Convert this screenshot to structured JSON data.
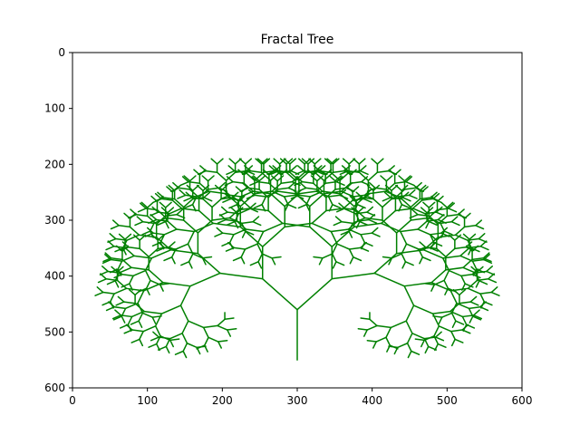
{
  "chart_data": {
    "type": "line",
    "title": "Fractal Tree",
    "xlabel": "",
    "ylabel": "",
    "xlim": [
      0,
      600
    ],
    "ylim": [
      600,
      0
    ],
    "y_inverted": true,
    "xticks": [
      "0",
      "100",
      "200",
      "300",
      "400",
      "500",
      "600"
    ],
    "yticks": [
      "0",
      "100",
      "200",
      "300",
      "400",
      "500",
      "600"
    ],
    "grid": false,
    "legend": "none",
    "line_color": "#008000",
    "tree": {
      "root": [
        300,
        550
      ],
      "trunk_length": 90,
      "length_ratio": 0.8,
      "branch_angle_deg": 40,
      "depth": 10
    }
  }
}
